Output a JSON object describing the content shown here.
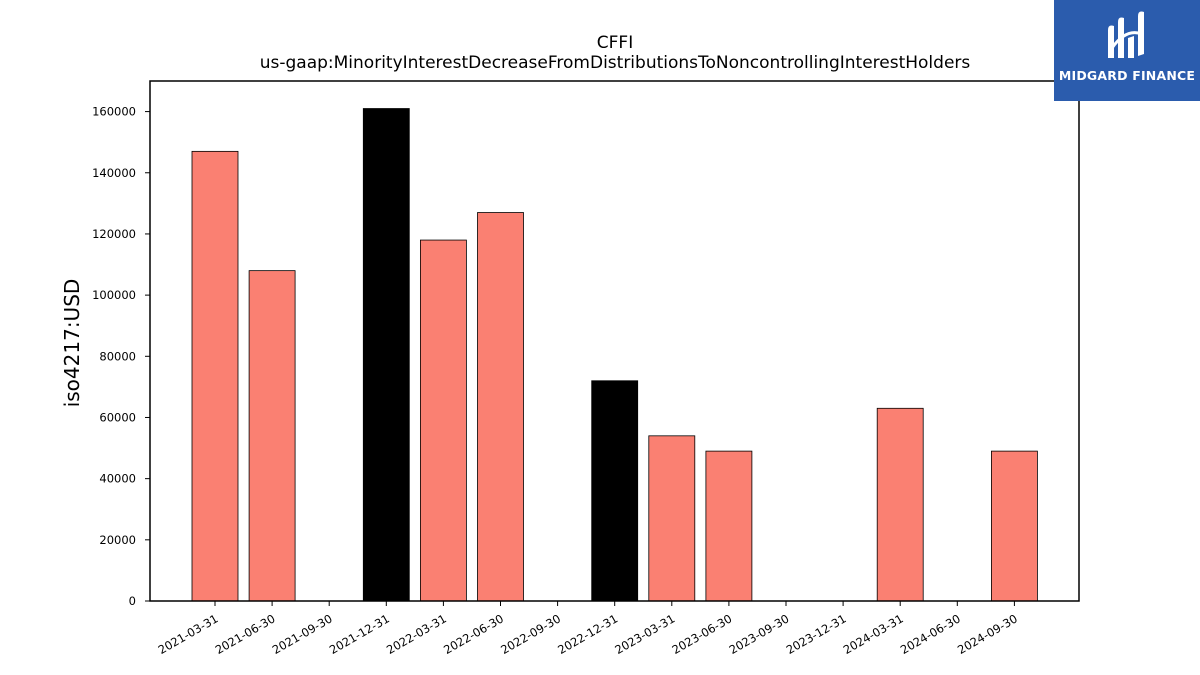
{
  "chart_data": {
    "type": "bar",
    "title": "CFFI",
    "subtitle": "us-gaap:MinorityInterestDecreaseFromDistributionsToNoncontrollingInterestHolders",
    "xlabel": "",
    "ylabel": "iso4217:USD",
    "ylim": [
      0,
      170000
    ],
    "yticks": [
      0,
      20000,
      40000,
      60000,
      80000,
      100000,
      120000,
      140000,
      160000
    ],
    "grid": false,
    "categories": [
      "2021-03-31",
      "2021-06-30",
      "2021-09-30",
      "2021-12-31",
      "2022-03-31",
      "2022-06-30",
      "2022-09-30",
      "2022-12-31",
      "2023-03-31",
      "2023-06-30",
      "2023-09-30",
      "2023-12-31",
      "2024-03-31",
      "2024-06-30",
      "2024-09-30"
    ],
    "values": [
      147000,
      108000,
      0,
      161000,
      118000,
      127000,
      0,
      72000,
      54000,
      49000,
      0,
      0,
      63000,
      0,
      49000
    ],
    "bar_colors": [
      "#fa8072",
      "#fa8072",
      "#fa8072",
      "#000000",
      "#fa8072",
      "#fa8072",
      "#fa8072",
      "#000000",
      "#fa8072",
      "#fa8072",
      "#fa8072",
      "#fa8072",
      "#fa8072",
      "#fa8072",
      "#fa8072"
    ]
  },
  "logo": {
    "text": "MIDGARD FINANCE",
    "background": "#2b5cad"
  }
}
